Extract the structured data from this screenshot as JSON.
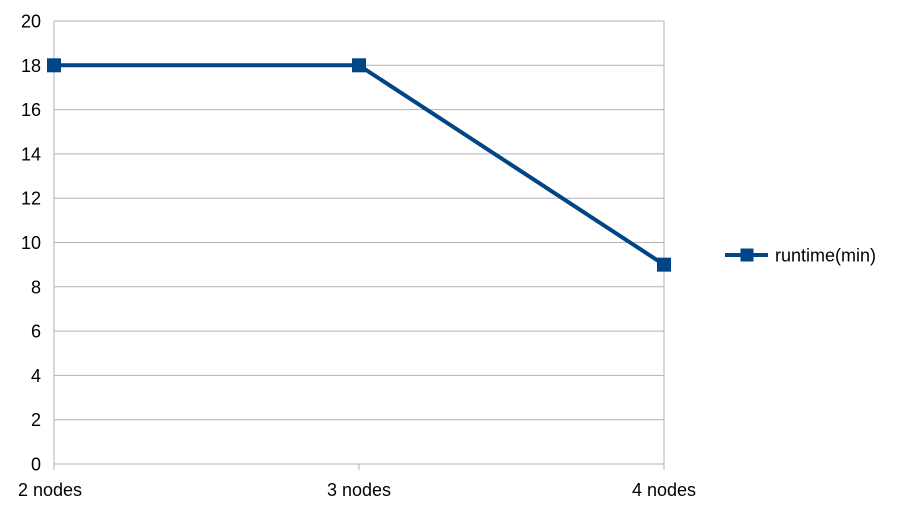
{
  "chart_data": {
    "type": "line",
    "categories": [
      "2 nodes",
      "3 nodes",
      "4 nodes"
    ],
    "series": [
      {
        "name": "runtime(min)",
        "values": [
          18,
          18,
          9
        ],
        "color": "#004586",
        "marker": "square"
      }
    ],
    "ylim": [
      0,
      20
    ],
    "yticks": [
      0,
      2,
      4,
      6,
      8,
      10,
      12,
      14,
      16,
      18,
      20
    ],
    "grid": true,
    "legend_position": "right"
  }
}
